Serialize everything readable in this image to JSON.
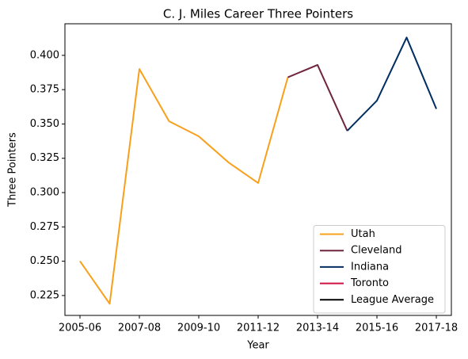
{
  "chart_data": {
    "type": "line",
    "title": "C. J. Miles Career Three Pointers",
    "x_label": "Year",
    "y_label": "Three Pointers",
    "categories": [
      "2005-06",
      null,
      "2007-08",
      null,
      "2009-10",
      null,
      "2011-12",
      null,
      "2013-14",
      null,
      "2015-16",
      null,
      "2017-18"
    ],
    "series": [
      {
        "name": "Utah",
        "color": "#f9a01b",
        "values": [
          0.25,
          0.219,
          0.39,
          0.352,
          0.341,
          0.322,
          0.307,
          0.384,
          null,
          null,
          null,
          null,
          null
        ]
      },
      {
        "name": "Cleveland",
        "color": "#6f263d",
        "values": [
          null,
          null,
          null,
          null,
          null,
          null,
          null,
          0.384,
          0.393,
          0.345,
          null,
          null,
          null
        ]
      },
      {
        "name": "Indiana",
        "color": "#002d62",
        "values": [
          null,
          null,
          null,
          null,
          null,
          null,
          null,
          null,
          null,
          0.345,
          0.367,
          0.413,
          0.361
        ]
      },
      {
        "name": "Toronto",
        "color": "#ce1141",
        "values": [
          null,
          null,
          null,
          null,
          null,
          null,
          null,
          null,
          null,
          null,
          null,
          null,
          null
        ]
      },
      {
        "name": "League Average",
        "color": "#000000",
        "values": [
          null,
          null,
          null,
          null,
          null,
          null,
          null,
          null,
          null,
          null,
          null,
          null,
          null
        ]
      }
    ],
    "ylim": [
      0.2105,
      0.423
    ],
    "yticks": [
      0.225,
      {
        "value": 0.25,
        "label": "0.250"
      },
      0.275,
      {
        "value": 0.3,
        "label": "0.300"
      },
      0.325,
      {
        "value": 0.35,
        "label": "0.350"
      },
      0.375,
      {
        "value": 0.4,
        "label": "0.400"
      }
    ],
    "grid": false,
    "legend": "lower right"
  }
}
